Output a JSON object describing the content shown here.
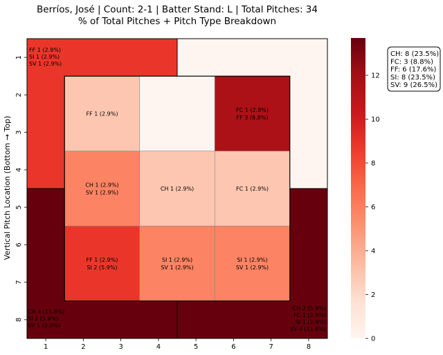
{
  "chart_data": {
    "type": "heatmap",
    "title_line1": "Berríos, José | Count: 2-1 | Batter Stand: L | Total Pitches: 34",
    "title_line2": "% of Total Pitches + Pitch Type Breakdown",
    "ylabel": "Vertical Pitch Location (Bottom → Top)",
    "x_ticks": [
      "1",
      "2",
      "3",
      "4",
      "5",
      "6",
      "7",
      "8"
    ],
    "y_ticks": [
      "1",
      "2",
      "3",
      "4",
      "5",
      "6",
      "7",
      "8"
    ],
    "colorbar": {
      "min": 0,
      "max": 13.7,
      "ticks": [
        "0",
        "2",
        "4",
        "6",
        "8",
        "10",
        "12"
      ],
      "cmap": "Reds"
    },
    "outer_zones": [
      {
        "zone": "top-left",
        "pct": 8.8,
        "labels": [
          "FF 1 (2.9%)",
          "SI 1 (2.9%)",
          "SV 1 (2.9%)"
        ],
        "label_align": "top-left"
      },
      {
        "zone": "top-right",
        "pct": 0,
        "labels": [],
        "label_align": "top-right"
      },
      {
        "zone": "bottom-left",
        "pct": 20.6,
        "labels": [
          "CH 4 (11.8%)",
          "SI 2 (5.9%)",
          "SV 1 (2.9%)"
        ],
        "label_align": "bottom-left"
      },
      {
        "zone": "bottom-right",
        "pct": 23.5,
        "labels": [
          "CH 2 (5.9%)",
          "FC 1 (2.9%)",
          "SI 1 (2.9%)",
          "SV 4 (11.8%)"
        ],
        "label_align": "bottom-right"
      }
    ],
    "inner_cells": [
      {
        "row": 0,
        "col": 0,
        "pct": 2.9,
        "labels": [
          "FF 1 (2.9%)"
        ]
      },
      {
        "row": 0,
        "col": 1,
        "pct": 0,
        "labels": []
      },
      {
        "row": 0,
        "col": 2,
        "pct": 11.7,
        "labels": [
          "FC 1 (2.9%)",
          "FF 3 (8.8%)"
        ]
      },
      {
        "row": 1,
        "col": 0,
        "pct": 5.8,
        "labels": [
          "CH 1 (2.9%)",
          "SV 1 (2.9%)"
        ]
      },
      {
        "row": 1,
        "col": 1,
        "pct": 2.9,
        "labels": [
          "CH 1 (2.9%)"
        ]
      },
      {
        "row": 1,
        "col": 2,
        "pct": 2.9,
        "labels": [
          "FC 1 (2.9%)"
        ]
      },
      {
        "row": 2,
        "col": 0,
        "pct": 8.8,
        "labels": [
          "FF 1 (2.9%)",
          "SI 2 (5.9%)"
        ]
      },
      {
        "row": 2,
        "col": 1,
        "pct": 5.8,
        "labels": [
          "SI 1 (2.9%)",
          "SV 1 (2.9%)"
        ]
      },
      {
        "row": 2,
        "col": 2,
        "pct": 5.8,
        "labels": [
          "SI 1 (2.9%)",
          "SV 1 (2.9%)"
        ]
      }
    ],
    "legend": [
      "CH: 8 (23.5%)",
      "FC: 3 (8.8%)",
      "FF: 6 (17.6%)",
      "SI: 8 (23.5%)",
      "SV: 9 (26.5%)"
    ],
    "legend_position": "right"
  }
}
